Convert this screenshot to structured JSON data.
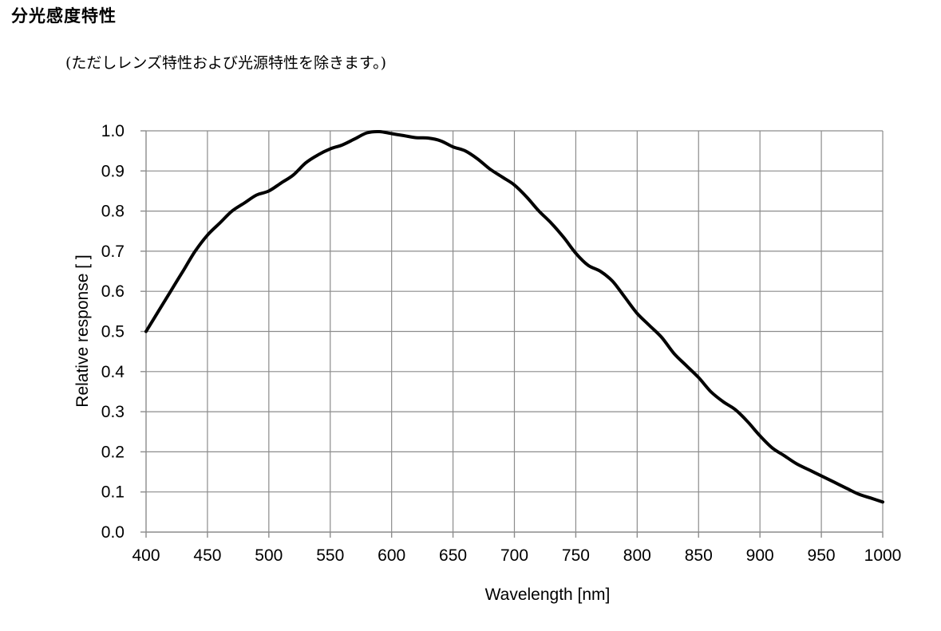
{
  "page": {
    "heading": "分光感度特性",
    "note": "(ただしレンズ特性および光源特性を除きます。)"
  },
  "chart_data": {
    "type": "line",
    "title": "",
    "xlabel": "Wavelength [nm]",
    "ylabel": "Relative response [ ]",
    "xlim": [
      400,
      1000
    ],
    "ylim": [
      0.0,
      1.0
    ],
    "x_ticks": [
      "400",
      "450",
      "500",
      "550",
      "600",
      "650",
      "700",
      "750",
      "800",
      "850",
      "900",
      "950",
      "1000"
    ],
    "y_ticks": [
      "0.0",
      "0.1",
      "0.2",
      "0.3",
      "0.4",
      "0.5",
      "0.6",
      "0.7",
      "0.8",
      "0.9",
      "1.0"
    ],
    "grid": true,
    "legend": "none",
    "series": [
      {
        "color": "#000000",
        "x": [
          400,
          410,
          420,
          430,
          440,
          450,
          460,
          470,
          480,
          490,
          500,
          510,
          520,
          530,
          540,
          550,
          560,
          570,
          580,
          590,
          600,
          610,
          620,
          630,
          640,
          650,
          660,
          670,
          680,
          690,
          700,
          710,
          720,
          730,
          740,
          750,
          760,
          770,
          780,
          790,
          800,
          810,
          820,
          830,
          840,
          850,
          860,
          870,
          880,
          890,
          900,
          910,
          920,
          930,
          940,
          950,
          960,
          970,
          980,
          990,
          1000
        ],
        "values": [
          0.5,
          0.55,
          0.6,
          0.65,
          0.7,
          0.74,
          0.77,
          0.8,
          0.82,
          0.84,
          0.85,
          0.87,
          0.89,
          0.92,
          0.94,
          0.955,
          0.965,
          0.98,
          0.995,
          0.998,
          0.993,
          0.988,
          0.983,
          0.982,
          0.975,
          0.96,
          0.95,
          0.93,
          0.905,
          0.885,
          0.865,
          0.835,
          0.8,
          0.77,
          0.735,
          0.695,
          0.665,
          0.65,
          0.625,
          0.585,
          0.545,
          0.515,
          0.485,
          0.445,
          0.415,
          0.385,
          0.35,
          0.325,
          0.305,
          0.275,
          0.24,
          0.21,
          0.19,
          0.17,
          0.155,
          0.14,
          0.125,
          0.11,
          0.095,
          0.085,
          0.075
        ]
      }
    ]
  }
}
